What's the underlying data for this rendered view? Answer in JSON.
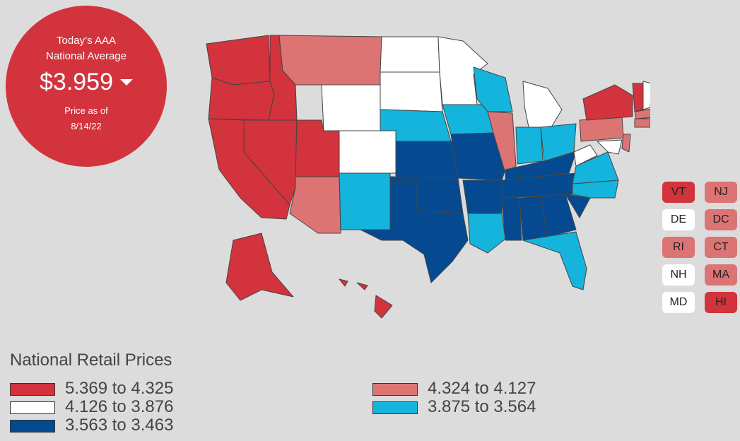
{
  "badge": {
    "line1": "Today’s AAA",
    "line2": "National Average",
    "price": "$3.959",
    "trend_icon": "caret-down-icon",
    "asof_label": "Price as of",
    "asof_date": "8/14/22"
  },
  "colors": {
    "red": "#d2333d",
    "pink": "#dc7474",
    "white": "#ffffff",
    "lightblue": "#14b4dc",
    "darkblue": "#054a91",
    "background": "#dcdcdc"
  },
  "small_states": [
    {
      "code": "VT",
      "band": "red"
    },
    {
      "code": "NJ",
      "band": "pink"
    },
    {
      "code": "DE",
      "band": "white"
    },
    {
      "code": "DC",
      "band": "pink"
    },
    {
      "code": "RI",
      "band": "pink"
    },
    {
      "code": "CT",
      "band": "pink"
    },
    {
      "code": "NH",
      "band": "white"
    },
    {
      "code": "MA",
      "band": "pink"
    },
    {
      "code": "MD",
      "band": "white"
    },
    {
      "code": "HI",
      "band": "red"
    }
  ],
  "legend": {
    "title": "National Retail Prices",
    "items": [
      {
        "label": "5.369 to 4.325",
        "band": "red"
      },
      {
        "label": "4.324 to 4.127",
        "band": "pink"
      },
      {
        "label": "4.126 to 3.876",
        "band": "white"
      },
      {
        "label": "3.875 to 3.564",
        "band": "lightblue"
      },
      {
        "label": "3.563 to 3.463",
        "band": "darkblue"
      }
    ]
  }
}
